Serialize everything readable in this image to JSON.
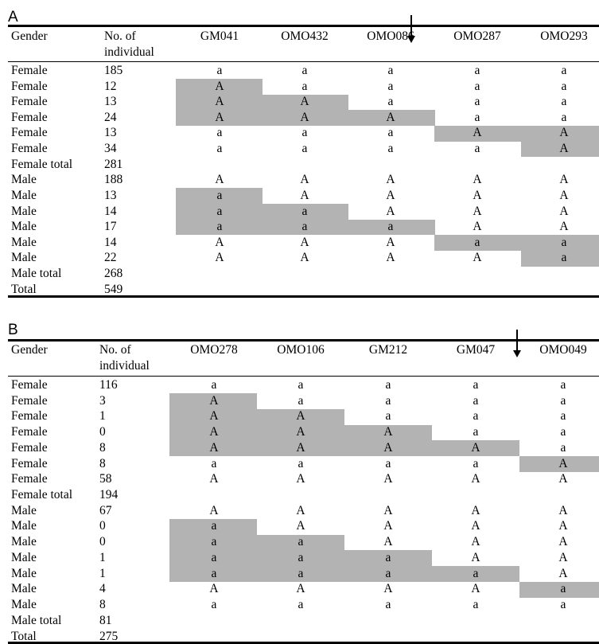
{
  "panelA": {
    "label": "A",
    "gender_header": "Gender",
    "count_header_line1": "No. of",
    "count_header_line2": "individual",
    "markers": [
      "GM041",
      "OMO432",
      "OMO086",
      "OMO287",
      "OMO293"
    ],
    "rows": [
      {
        "gender": "Female",
        "count": "185",
        "geno": [
          "a",
          "a",
          "a",
          "a",
          "a"
        ],
        "shaded": [
          false,
          false,
          false,
          false,
          false
        ]
      },
      {
        "gender": "Female",
        "count": "12",
        "geno": [
          "A",
          "a",
          "a",
          "a",
          "a"
        ],
        "shaded": [
          true,
          false,
          false,
          false,
          false
        ]
      },
      {
        "gender": "Female",
        "count": "13",
        "geno": [
          "A",
          "A",
          "a",
          "a",
          "a"
        ],
        "shaded": [
          true,
          true,
          false,
          false,
          false
        ]
      },
      {
        "gender": "Female",
        "count": "24",
        "geno": [
          "A",
          "A",
          "A",
          "a",
          "a"
        ],
        "shaded": [
          true,
          true,
          true,
          false,
          false
        ]
      },
      {
        "gender": "Female",
        "count": "13",
        "geno": [
          "a",
          "a",
          "a",
          "A",
          "A"
        ],
        "shaded": [
          false,
          false,
          false,
          true,
          true
        ]
      },
      {
        "gender": "Female",
        "count": "34",
        "geno": [
          "a",
          "a",
          "a",
          "a",
          "A"
        ],
        "shaded": [
          false,
          false,
          false,
          false,
          true
        ]
      },
      {
        "gender": "Female total",
        "count": "281",
        "geno": [],
        "shaded": []
      },
      {
        "gender": "Male",
        "count": "188",
        "geno": [
          "A",
          "A",
          "A",
          "A",
          "A"
        ],
        "shaded": [
          false,
          false,
          false,
          false,
          false
        ]
      },
      {
        "gender": "Male",
        "count": "13",
        "geno": [
          "a",
          "A",
          "A",
          "A",
          "A"
        ],
        "shaded": [
          true,
          false,
          false,
          false,
          false
        ]
      },
      {
        "gender": "Male",
        "count": "14",
        "geno": [
          "a",
          "a",
          "A",
          "A",
          "A"
        ],
        "shaded": [
          true,
          true,
          false,
          false,
          false
        ]
      },
      {
        "gender": "Male",
        "count": "17",
        "geno": [
          "a",
          "a",
          "a",
          "A",
          "A"
        ],
        "shaded": [
          true,
          true,
          true,
          false,
          false
        ]
      },
      {
        "gender": "Male",
        "count": "14",
        "geno": [
          "A",
          "A",
          "A",
          "a",
          "a"
        ],
        "shaded": [
          false,
          false,
          false,
          true,
          true
        ]
      },
      {
        "gender": "Male",
        "count": "22",
        "geno": [
          "A",
          "A",
          "A",
          "A",
          "a"
        ],
        "shaded": [
          false,
          false,
          false,
          false,
          true
        ]
      },
      {
        "gender": "Male total",
        "count": "268",
        "geno": [],
        "shaded": []
      },
      {
        "gender": "Total",
        "count": "549",
        "geno": [],
        "shaded": []
      }
    ]
  },
  "panelB": {
    "label": "B",
    "gender_header": "Gender",
    "count_header_line1": "No. of",
    "count_header_line2": "individual",
    "markers": [
      "OMO278",
      "OMO106",
      "GM212",
      "GM047",
      "OMO049"
    ],
    "rows": [
      {
        "gender": "Female",
        "count": "116",
        "geno": [
          "a",
          "a",
          "a",
          "a",
          "a"
        ],
        "shaded": [
          false,
          false,
          false,
          false,
          false
        ]
      },
      {
        "gender": "Female",
        "count": "3",
        "geno": [
          "A",
          "a",
          "a",
          "a",
          "a"
        ],
        "shaded": [
          true,
          false,
          false,
          false,
          false
        ]
      },
      {
        "gender": "Female",
        "count": "1",
        "geno": [
          "A",
          "A",
          "a",
          "a",
          "a"
        ],
        "shaded": [
          true,
          true,
          false,
          false,
          false
        ]
      },
      {
        "gender": "Female",
        "count": "0",
        "geno": [
          "A",
          "A",
          "A",
          "a",
          "a"
        ],
        "shaded": [
          true,
          true,
          true,
          false,
          false
        ]
      },
      {
        "gender": "Female",
        "count": "8",
        "geno": [
          "A",
          "A",
          "A",
          "A",
          "a"
        ],
        "shaded": [
          true,
          true,
          true,
          true,
          false
        ]
      },
      {
        "gender": "Female",
        "count": "8",
        "geno": [
          "a",
          "a",
          "a",
          "a",
          "A"
        ],
        "shaded": [
          false,
          false,
          false,
          false,
          true
        ]
      },
      {
        "gender": "Female",
        "count": "58",
        "geno": [
          "A",
          "A",
          "A",
          "A",
          "A"
        ],
        "shaded": [
          false,
          false,
          false,
          false,
          false
        ]
      },
      {
        "gender": "Female total",
        "count": "194",
        "geno": [],
        "shaded": []
      },
      {
        "gender": "Male",
        "count": "67",
        "geno": [
          "A",
          "A",
          "A",
          "A",
          "A"
        ],
        "shaded": [
          false,
          false,
          false,
          false,
          false
        ]
      },
      {
        "gender": "Male",
        "count": "0",
        "geno": [
          "a",
          "A",
          "A",
          "A",
          "A"
        ],
        "shaded": [
          true,
          false,
          false,
          false,
          false
        ]
      },
      {
        "gender": "Male",
        "count": "0",
        "geno": [
          "a",
          "a",
          "A",
          "A",
          "A"
        ],
        "shaded": [
          true,
          true,
          false,
          false,
          false
        ]
      },
      {
        "gender": "Male",
        "count": "1",
        "geno": [
          "a",
          "a",
          "a",
          "A",
          "A"
        ],
        "shaded": [
          true,
          true,
          true,
          false,
          false
        ]
      },
      {
        "gender": "Male",
        "count": "1",
        "geno": [
          "a",
          "a",
          "a",
          "a",
          "A"
        ],
        "shaded": [
          true,
          true,
          true,
          true,
          false
        ]
      },
      {
        "gender": "Male",
        "count": "4",
        "geno": [
          "A",
          "A",
          "A",
          "A",
          "a"
        ],
        "shaded": [
          false,
          false,
          false,
          false,
          true
        ]
      },
      {
        "gender": "Male",
        "count": "8",
        "geno": [
          "a",
          "a",
          "a",
          "a",
          "a"
        ],
        "shaded": [
          false,
          false,
          false,
          false,
          false
        ]
      },
      {
        "gender": "Male total",
        "count": "81",
        "geno": [],
        "shaded": []
      },
      {
        "gender": "Total",
        "count": "275",
        "geno": [],
        "shaded": []
      }
    ]
  }
}
